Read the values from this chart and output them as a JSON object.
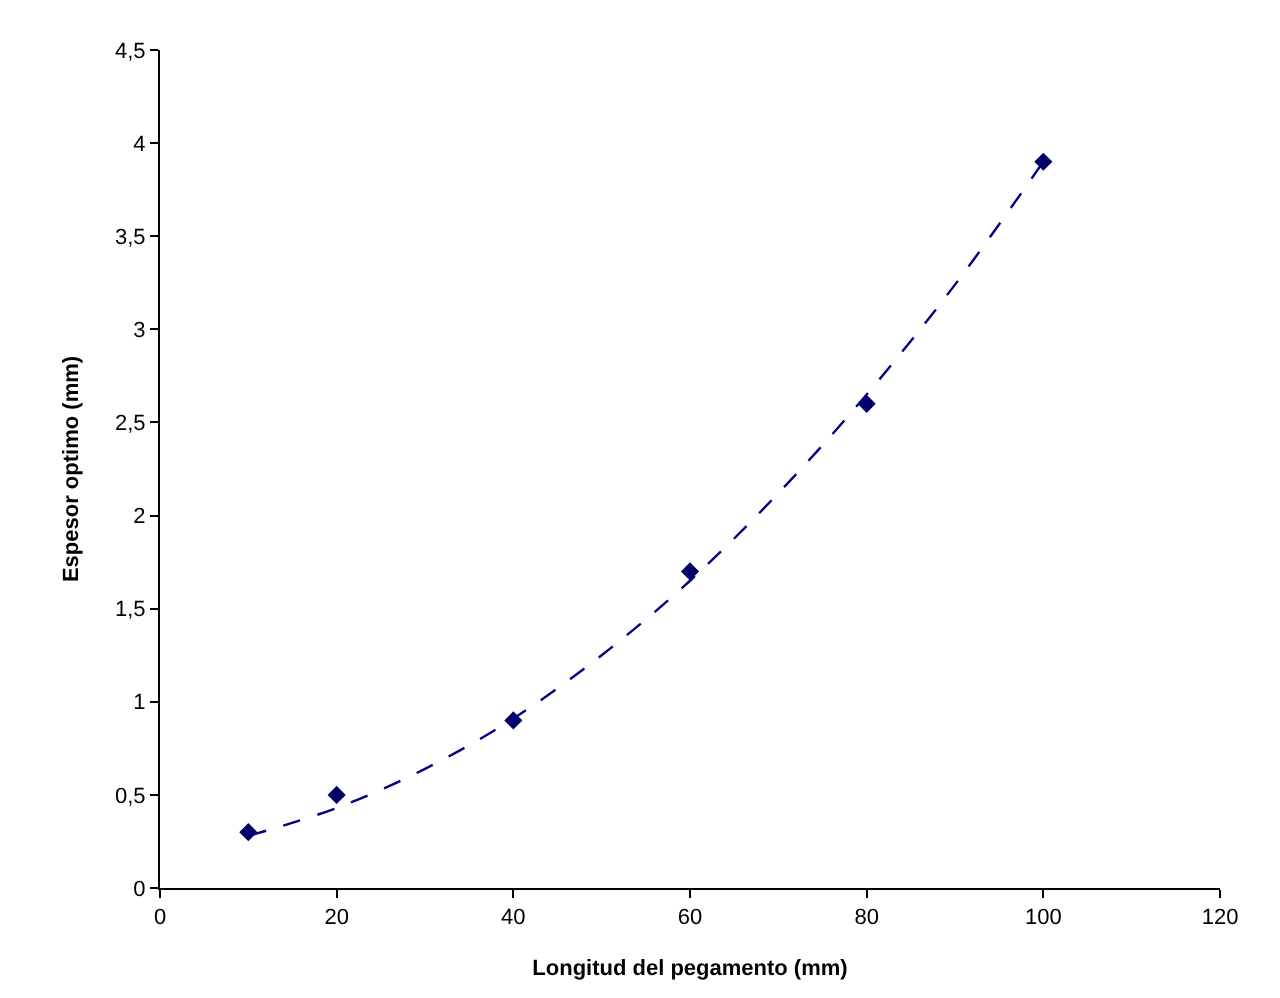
{
  "chart_data": {
    "type": "scatter",
    "xlabel": "Longitud del pegamento (mm)",
    "ylabel": "Espesor optimo (mm)",
    "xlim": [
      0,
      120
    ],
    "xticks": [
      0,
      20,
      40,
      60,
      80,
      100,
      120
    ],
    "ylim": [
      0,
      4.5
    ],
    "yticks": [
      0,
      {
        "value": 0.5,
        "label": "0,5"
      },
      1,
      {
        "value": 1.5,
        "label": "1,5"
      },
      2,
      {
        "value": 2.5,
        "label": "2,5"
      },
      3,
      {
        "value": 3.5,
        "label": "3,5"
      },
      4,
      {
        "value": 4.5,
        "label": "4,5"
      }
    ],
    "legend": false,
    "series": [
      {
        "color": "#000066",
        "marker": "diamond",
        "x": [
          10,
          20,
          40,
          60,
          80,
          100
        ],
        "values": [
          0.3,
          0.5,
          0.9,
          1.7,
          2.6,
          3.9
        ]
      },
      {
        "type": "line",
        "color": "#000080",
        "line_style": "dashed",
        "x": [
          10,
          20,
          30,
          40,
          50,
          60,
          70,
          80,
          90,
          100
        ],
        "values": [
          0.28,
          0.43,
          0.64,
          0.91,
          1.25,
          1.65,
          2.12,
          2.65,
          3.24,
          3.9
        ]
      }
    ]
  }
}
